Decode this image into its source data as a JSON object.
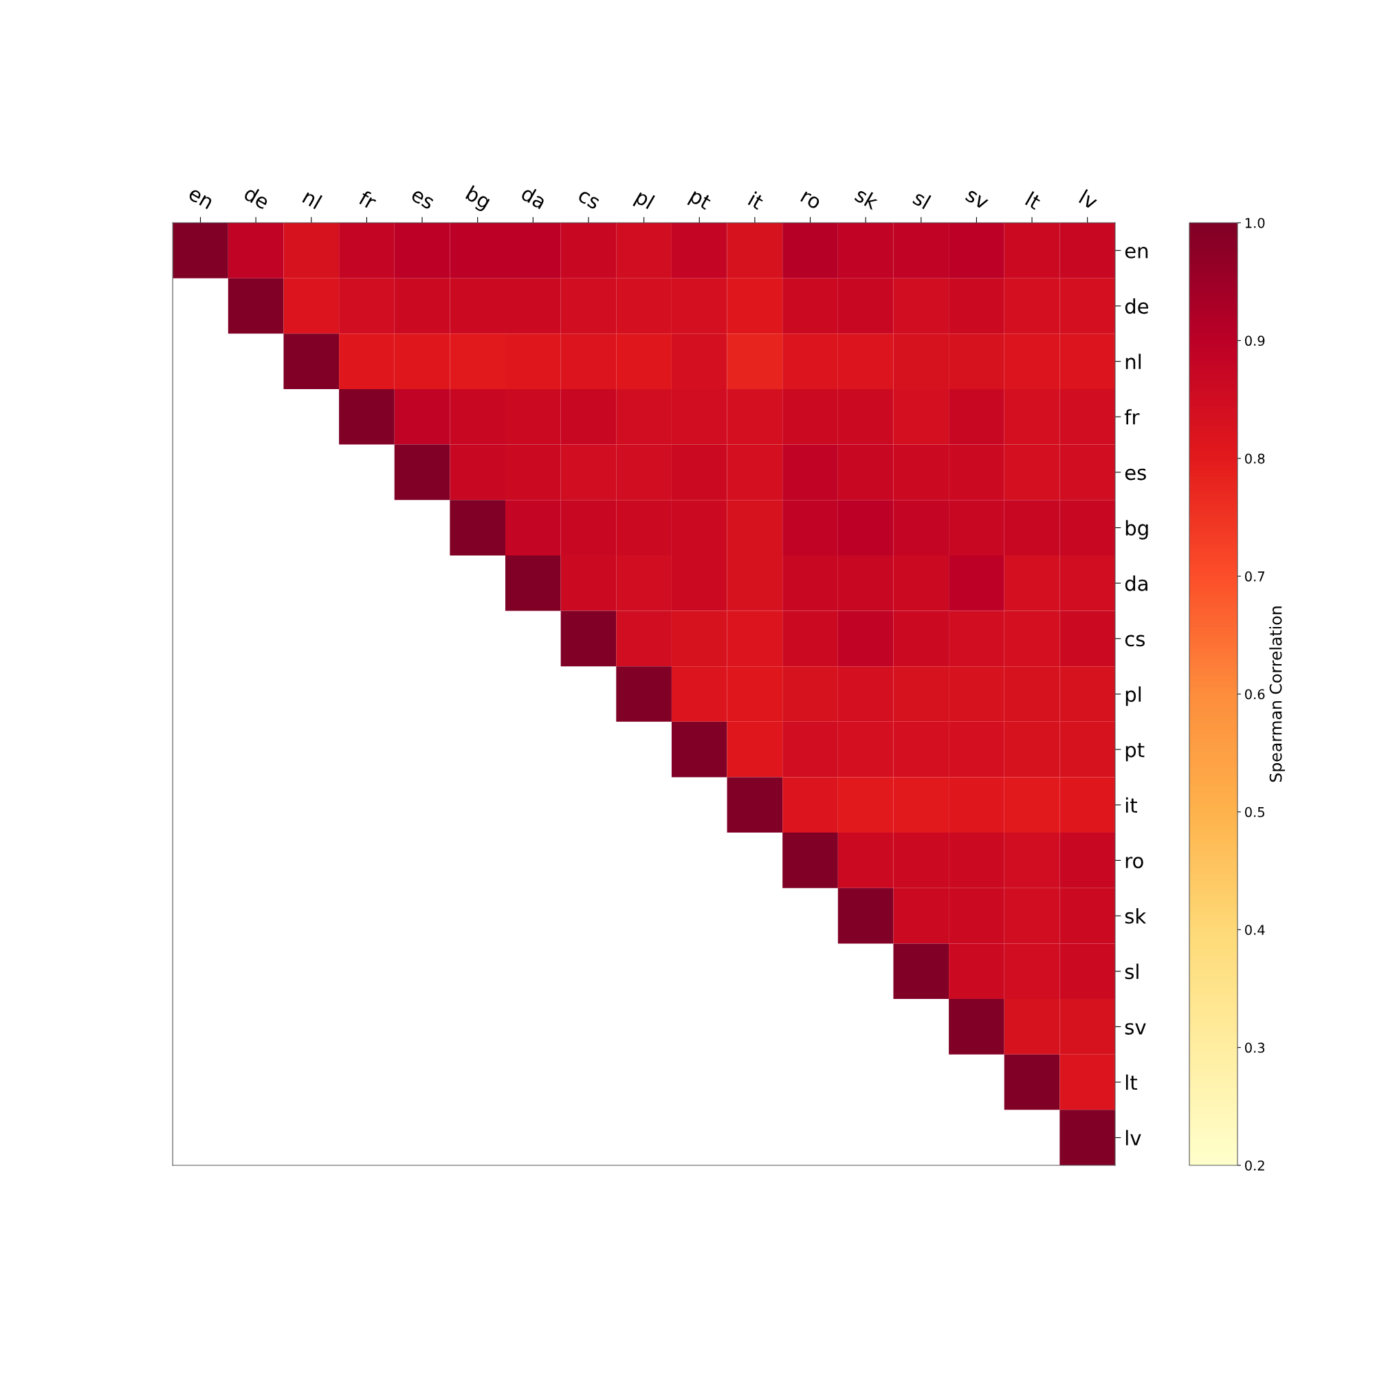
{
  "chart_data": {
    "type": "heatmap",
    "clabel": "Spearman Correlation",
    "categories": [
      "en",
      "de",
      "nl",
      "fr",
      "es",
      "bg",
      "da",
      "cs",
      "pl",
      "pt",
      "it",
      "ro",
      "sk",
      "sl",
      "sv",
      "lt",
      "lv"
    ],
    "y_categories": [
      "en",
      "de",
      "nl",
      "fr",
      "es",
      "bg",
      "da",
      "cs",
      "pl",
      "pt",
      "it",
      "ro",
      "sk",
      "sl",
      "sv",
      "lt",
      "lv"
    ],
    "clim": [
      0.2,
      1.0
    ],
    "cticks": [
      {
        "value": 0.2,
        "label": "0.2"
      },
      {
        "value": 0.3,
        "label": "0.3"
      },
      {
        "value": 0.4,
        "label": "0.4"
      },
      {
        "value": 0.5,
        "label": "0.5"
      },
      {
        "value": 0.6,
        "label": "0.6"
      },
      {
        "value": 0.7,
        "label": "0.7"
      },
      {
        "value": 0.8,
        "label": "0.8"
      },
      {
        "value": 0.9,
        "label": "0.9"
      },
      {
        "value": 1.0,
        "label": "1.0"
      }
    ],
    "cells": [
      [
        1.0,
        0.89,
        0.83,
        0.88,
        0.9,
        0.9,
        0.9,
        0.87,
        0.85,
        0.88,
        0.83,
        0.91,
        0.89,
        0.89,
        0.9,
        0.86,
        0.87
      ],
      [
        null,
        1.0,
        0.82,
        0.85,
        0.86,
        0.86,
        0.86,
        0.85,
        0.84,
        0.84,
        0.81,
        0.86,
        0.87,
        0.85,
        0.86,
        0.84,
        0.84
      ],
      [
        null,
        null,
        1.0,
        0.81,
        0.81,
        0.8,
        0.81,
        0.82,
        0.81,
        0.84,
        0.78,
        0.82,
        0.82,
        0.83,
        0.83,
        0.82,
        0.82
      ],
      [
        null,
        null,
        null,
        1.0,
        0.89,
        0.87,
        0.86,
        0.87,
        0.85,
        0.85,
        0.84,
        0.86,
        0.86,
        0.84,
        0.87,
        0.84,
        0.85
      ],
      [
        null,
        null,
        null,
        null,
        1.0,
        0.87,
        0.86,
        0.85,
        0.85,
        0.86,
        0.84,
        0.89,
        0.87,
        0.86,
        0.86,
        0.84,
        0.85
      ],
      [
        null,
        null,
        null,
        null,
        null,
        1.0,
        0.88,
        0.87,
        0.86,
        0.86,
        0.83,
        0.89,
        0.9,
        0.88,
        0.87,
        0.87,
        0.87
      ],
      [
        null,
        null,
        null,
        null,
        null,
        null,
        1.0,
        0.86,
        0.85,
        0.86,
        0.83,
        0.87,
        0.87,
        0.86,
        0.9,
        0.84,
        0.85
      ],
      [
        null,
        null,
        null,
        null,
        null,
        null,
        null,
        1.0,
        0.85,
        0.83,
        0.82,
        0.86,
        0.89,
        0.86,
        0.85,
        0.84,
        0.86
      ],
      [
        null,
        null,
        null,
        null,
        null,
        null,
        null,
        null,
        1.0,
        0.82,
        0.81,
        0.83,
        0.84,
        0.83,
        0.83,
        0.83,
        0.83
      ],
      [
        null,
        null,
        null,
        null,
        null,
        null,
        null,
        null,
        null,
        1.0,
        0.81,
        0.85,
        0.84,
        0.84,
        0.84,
        0.83,
        0.83
      ],
      [
        null,
        null,
        null,
        null,
        null,
        null,
        null,
        null,
        null,
        null,
        1.0,
        0.82,
        0.8,
        0.8,
        0.81,
        0.8,
        0.81
      ],
      [
        null,
        null,
        null,
        null,
        null,
        null,
        null,
        null,
        null,
        null,
        null,
        1.0,
        0.86,
        0.86,
        0.86,
        0.85,
        0.87
      ],
      [
        null,
        null,
        null,
        null,
        null,
        null,
        null,
        null,
        null,
        null,
        null,
        null,
        1.0,
        0.86,
        0.86,
        0.85,
        0.86
      ],
      [
        null,
        null,
        null,
        null,
        null,
        null,
        null,
        null,
        null,
        null,
        null,
        null,
        null,
        1.0,
        0.86,
        0.85,
        0.86
      ],
      [
        null,
        null,
        null,
        null,
        null,
        null,
        null,
        null,
        null,
        null,
        null,
        null,
        null,
        null,
        1.0,
        0.83,
        0.83
      ],
      [
        null,
        null,
        null,
        null,
        null,
        null,
        null,
        null,
        null,
        null,
        null,
        null,
        null,
        null,
        null,
        1.0,
        0.82
      ],
      [
        null,
        null,
        null,
        null,
        null,
        null,
        null,
        null,
        null,
        null,
        null,
        null,
        null,
        null,
        null,
        null,
        1.0
      ]
    ]
  }
}
